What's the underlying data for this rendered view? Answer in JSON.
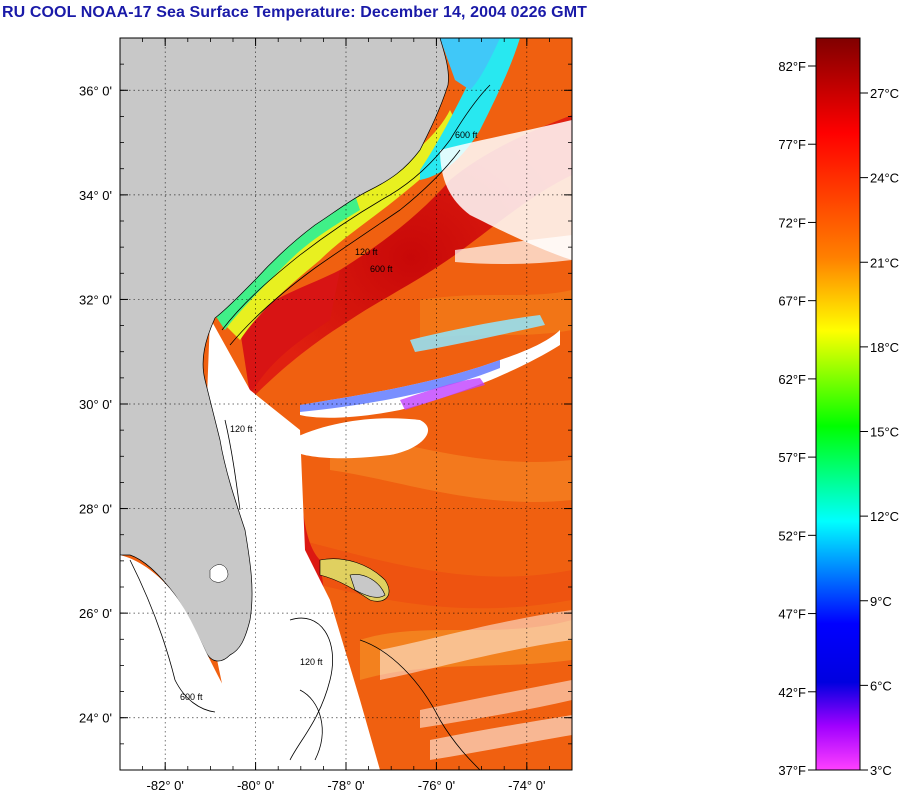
{
  "title": "RU COOL  NOAA-17  Sea Surface Temperature:  December 14, 2004 0226 GMT",
  "map": {
    "lon_range": [
      -83.0,
      -73.0
    ],
    "lat_range": [
      23.0,
      37.0
    ],
    "lat_ticks": [
      {
        "value": 36,
        "label": "36° 0'"
      },
      {
        "value": 34,
        "label": "34° 0'"
      },
      {
        "value": 32,
        "label": "32° 0'"
      },
      {
        "value": 30,
        "label": "30° 0'"
      },
      {
        "value": 28,
        "label": "28° 0'"
      },
      {
        "value": 26,
        "label": "26° 0'"
      },
      {
        "value": 24,
        "label": "24° 0'"
      }
    ],
    "lon_ticks": [
      {
        "value": -82,
        "label": "-82° 0'"
      },
      {
        "value": -80,
        "label": "-80° 0'"
      },
      {
        "value": -78,
        "label": "-78° 0'"
      },
      {
        "value": -76,
        "label": "-76° 0'"
      },
      {
        "value": -74,
        "label": "-74° 0'"
      }
    ],
    "contour_labels": [
      "120 ft",
      "600 ft"
    ],
    "colors": {
      "land": "#c8c8c8",
      "no_data": "#ffffff",
      "gulf_stream": "#d81010",
      "open_ocean": "#f06010",
      "shelf": "#e8f020",
      "inshore": "#28e8f0"
    }
  },
  "colorbar": {
    "fahrenheit": [
      "82°F",
      "77°F",
      "72°F",
      "67°F",
      "62°F",
      "57°F",
      "52°F",
      "47°F",
      "42°F",
      "37°F"
    ],
    "celsius": [
      "27°C",
      "24°C",
      "21°C",
      "18°C",
      "15°C",
      "12°C",
      "9°C",
      "6°C",
      "3°C"
    ],
    "stops": [
      "#800000",
      "#ff0000",
      "#ff8000",
      "#ffff00",
      "#00ff00",
      "#00ffff",
      "#0000ff",
      "#a000ff",
      "#ff40ff"
    ]
  }
}
